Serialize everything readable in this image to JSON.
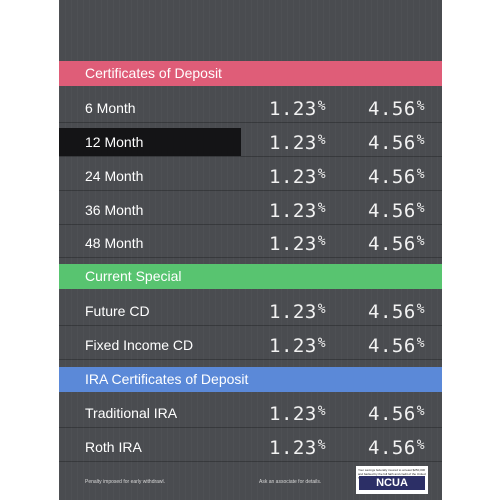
{
  "sections": [
    {
      "title": "Certificates of Deposit",
      "rows": [
        {
          "label": "6 Month",
          "rate1": "1.23",
          "rate2": "4.56"
        },
        {
          "label": "12 Month",
          "rate1": "1.23",
          "rate2": "4.56"
        },
        {
          "label": "24 Month",
          "rate1": "1.23",
          "rate2": "4.56"
        },
        {
          "label": "36 Month",
          "rate1": "1.23",
          "rate2": "4.56"
        },
        {
          "label": "48 Month",
          "rate1": "1.23",
          "rate2": "4.56"
        }
      ]
    },
    {
      "title": "Current Special",
      "rows": [
        {
          "label": "Future CD",
          "rate1": "1.23",
          "rate2": "4.56"
        },
        {
          "label": "Fixed Income CD",
          "rate1": "1.23",
          "rate2": "4.56"
        }
      ]
    },
    {
      "title": "IRA Certificates of Deposit",
      "rows": [
        {
          "label": "Traditional IRA",
          "rate1": "1.23",
          "rate2": "4.56"
        },
        {
          "label": "Roth IRA",
          "rate1": "1.23",
          "rate2": "4.56"
        }
      ]
    }
  ],
  "percent_symbol": "%",
  "footer": {
    "left": "Penalty imposed for early withdrawl.",
    "right": "Ask an associate for details."
  },
  "ncua": {
    "label": "NCUA",
    "fine_print": "Your savings federally insured to at least $250,000 and backed by the full faith and credit of the United States Government"
  },
  "colors": {
    "board": "#4a4c50",
    "cd_band": "#df5d78",
    "special_band": "#58c470",
    "ira_band": "#5b89d8",
    "highlight_row": "#141416"
  }
}
